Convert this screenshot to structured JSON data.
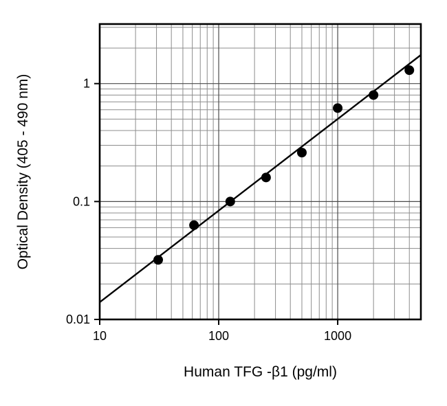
{
  "figure": {
    "background": "#ffffff"
  },
  "chart_data": {
    "type": "scatter",
    "title": "",
    "xlabel": "Human TFG -β1 (pg/ml)",
    "ylabel": "Optical Density (405 - 490 nm)",
    "x_scale": "log",
    "y_scale": "log",
    "xlim": [
      10,
      5000
    ],
    "ylim": [
      0.01,
      3.2
    ],
    "x_ticks": [
      {
        "value": 10,
        "label": "10"
      },
      {
        "value": 100,
        "label": "100"
      },
      {
        "value": 1000,
        "label": "1000"
      }
    ],
    "y_ticks": [
      {
        "value": 1,
        "label": "1"
      },
      {
        "value": 0.1,
        "label": "0.1"
      },
      {
        "value": 0.01,
        "label": "0.01"
      }
    ],
    "grid": {
      "major": true,
      "minor": true,
      "major_color": "#4a4a4a",
      "minor_color": "#8c8c8c"
    },
    "frame_color": "#000000",
    "legend": "none",
    "series": [
      {
        "name": "standard-curve-points",
        "type": "scatter",
        "marker": "filled-circle",
        "color": "#000000",
        "points": [
          {
            "x": 31,
            "y": 0.032
          },
          {
            "x": 62,
            "y": 0.063
          },
          {
            "x": 125,
            "y": 0.1
          },
          {
            "x": 250,
            "y": 0.16
          },
          {
            "x": 500,
            "y": 0.26
          },
          {
            "x": 1000,
            "y": 0.62
          },
          {
            "x": 2000,
            "y": 0.8
          },
          {
            "x": 4000,
            "y": 1.3
          }
        ]
      },
      {
        "name": "fit-line",
        "type": "line",
        "color": "#000000",
        "points": [
          {
            "x": 10,
            "y": 0.014
          },
          {
            "x": 5000,
            "y": 1.75
          }
        ]
      }
    ]
  }
}
